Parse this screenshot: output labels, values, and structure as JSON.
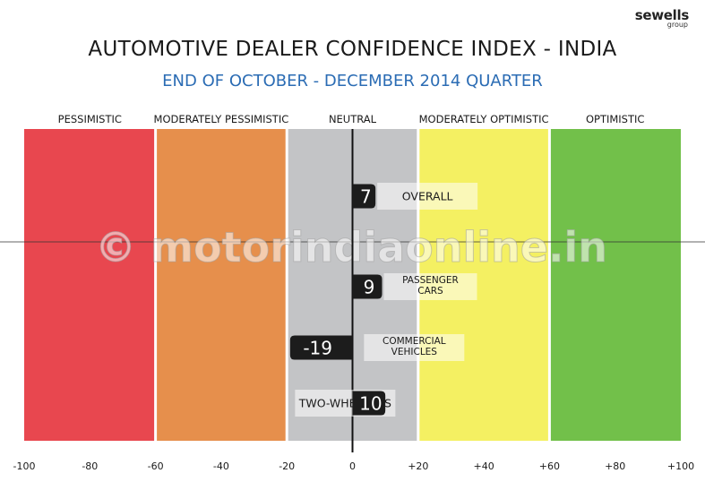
{
  "logo": {
    "brand": "sewells",
    "sub": "group"
  },
  "watermark": "© motorindiaonline.in",
  "chart_data": {
    "type": "bar",
    "orientation": "horizontal",
    "title": "AUTOMOTIVE DEALER CONFIDENCE INDEX - INDIA",
    "subtitle": "END OF OCTOBER - DECEMBER 2014 QUARTER",
    "xlim": [
      -100,
      100
    ],
    "ticks": [
      {
        "value": -100,
        "label": "-100"
      },
      {
        "value": -80,
        "label": "-80"
      },
      {
        "value": -60,
        "label": "-60"
      },
      {
        "value": -40,
        "label": "-40"
      },
      {
        "value": -20,
        "label": "-20"
      },
      {
        "value": 0,
        "label": "0"
      },
      {
        "value": 20,
        "label": "+20"
      },
      {
        "value": 40,
        "label": "+40"
      },
      {
        "value": 60,
        "label": "+60"
      },
      {
        "value": 80,
        "label": "+80"
      },
      {
        "value": 100,
        "label": "+100"
      }
    ],
    "zones": [
      {
        "label": "PESSIMISTIC",
        "from": -100,
        "to": -60,
        "color": "#e8474f"
      },
      {
        "label": "MODERATELY PESSIMISTIC",
        "from": -60,
        "to": -20,
        "color": "#e68f4c"
      },
      {
        "label": "NEUTRAL",
        "from": -20,
        "to": 20,
        "color": "#c3c4c6"
      },
      {
        "label": "MODERATELY OPTIMISTIC",
        "from": 20,
        "to": 60,
        "color": "#f4f062"
      },
      {
        "label": "OPTIMISTIC",
        "from": 60,
        "to": 100,
        "color": "#72c04a"
      }
    ],
    "bars": [
      {
        "category": [
          "OVERALL"
        ],
        "value": 7,
        "label": "7"
      },
      {
        "category": [
          "PASSENGER",
          "CARS"
        ],
        "value": 9,
        "label": "9"
      },
      {
        "category": [
          "COMMERCIAL",
          "VEHICLES"
        ],
        "value": -19,
        "label": "-19"
      },
      {
        "category": [
          "TWO-WHEELERS"
        ],
        "value": 10,
        "label": "10"
      }
    ]
  }
}
